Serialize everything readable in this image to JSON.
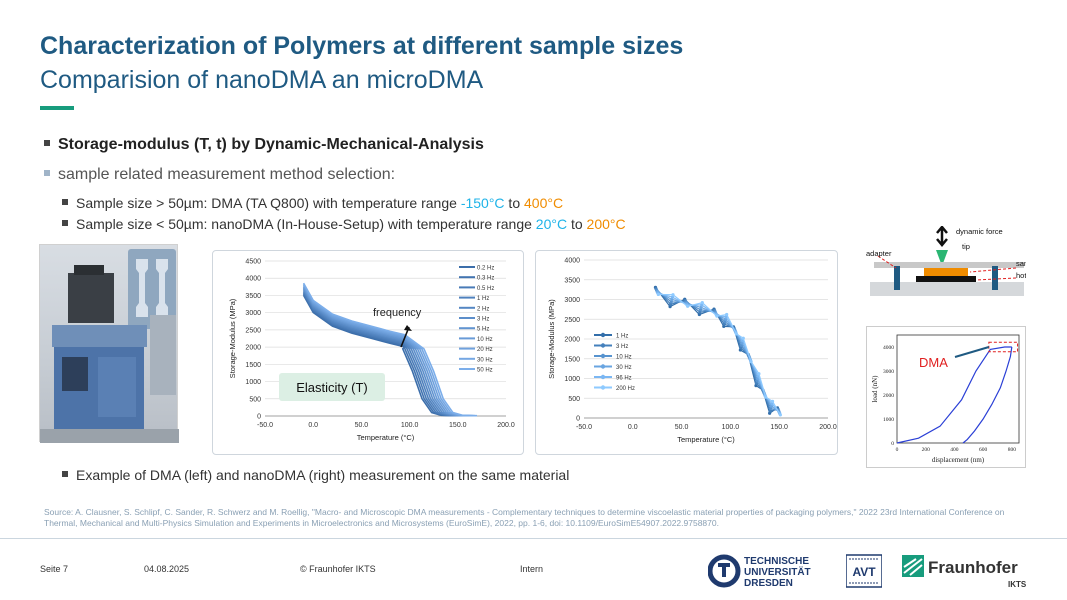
{
  "title": "Characterization of Polymers at different sample sizes",
  "subtitle": "Comparision of nanoDMA an microDMA",
  "bullets": {
    "b1": "Storage-modulus (T, t) by Dynamic-Mechanical-Analysis",
    "b2": "sample related measurement method selection:",
    "b3_pre": "Sample size > 50µm: DMA (TA Q800) with temperature range ",
    "b3_t1": "-150°C",
    "b3_mid": " to ",
    "b3_t2": "400°C",
    "b4_pre": "Sample size < 50µm: nanoDMA (In-House-Setup) with temperature range ",
    "b4_t1": "20°C",
    "b4_mid": " to ",
    "b4_t2": "200°C",
    "b5": "Example of DMA (left) and nanoDMA (right) measurement on the same material"
  },
  "chart_data": [
    {
      "type": "line",
      "title": "",
      "xlabel": "Temperature (°C)",
      "ylabel": "Storage-Modulus (MPa)",
      "xlim": [
        -50,
        200
      ],
      "ylim": [
        0,
        4500
      ],
      "x_ticks": [
        "-50.0",
        "0.0",
        "50.0",
        "100.0",
        "150.0",
        "200.0"
      ],
      "y_ticks": [
        "0",
        "500",
        "1000",
        "1500",
        "2000",
        "2500",
        "3000",
        "3500",
        "4000",
        "4500"
      ],
      "legend": [
        "0.2 Hz",
        "0.3 Hz",
        "0.5 Hz",
        "1 Hz",
        "2 Hz",
        "3 Hz",
        "5 Hz",
        "10 Hz",
        "20 Hz",
        "30 Hz",
        "50 Hz"
      ],
      "annotation_frequency": "frequency",
      "annotation_elasticity": "Elasticity (T)",
      "x": [
        -10,
        0,
        20,
        40,
        60,
        80,
        95,
        105,
        115,
        125,
        135,
        145,
        160
      ],
      "values": [
        3700,
        3200,
        2800,
        2600,
        2450,
        2300,
        2200,
        1950,
        1300,
        500,
        100,
        20,
        10
      ]
    },
    {
      "type": "scatter",
      "title": "",
      "xlabel": "Temperature (°C)",
      "ylabel": "Storage-Modulus (MPa)",
      "xlim": [
        -50,
        200
      ],
      "ylim": [
        0,
        4000
      ],
      "x_ticks": [
        "-50.0",
        "0.0",
        "50.0",
        "100.0",
        "150.0",
        "200.0"
      ],
      "y_ticks": [
        "0",
        "500",
        "1000",
        "1500",
        "2000",
        "2500",
        "3000",
        "3500",
        "4000"
      ],
      "legend": [
        "1 Hz",
        "3 Hz",
        "10 Hz",
        "30 Hz",
        "96 Hz",
        "200 Hz"
      ],
      "x": [
        25,
        40,
        55,
        70,
        85,
        95,
        105,
        112,
        120,
        128,
        135,
        142,
        150
      ],
      "values": [
        3200,
        3000,
        2900,
        2800,
        2650,
        2500,
        2200,
        1900,
        1500,
        1000,
        600,
        300,
        150
      ]
    },
    {
      "type": "line",
      "title": "",
      "xlabel": "displacement (nm)",
      "ylabel": "load (nN)",
      "annotation": "DMA",
      "xlim": [
        0,
        850
      ],
      "ylim": [
        0,
        4500
      ],
      "x_ticks": [
        "0",
        "200",
        "400",
        "600",
        "800"
      ],
      "y_ticks": [
        "0",
        "1000",
        "2000",
        "3000",
        "4000"
      ],
      "x": [
        0,
        150,
        300,
        450,
        550,
        650,
        750,
        800
      ],
      "values": [
        0,
        200,
        700,
        1800,
        3000,
        3900,
        4000,
        4000
      ]
    }
  ],
  "diagram": {
    "dynamic_force": "dynamic force",
    "tip": "tip",
    "adapter": "adapter",
    "sample": "sample",
    "hot_plate": "hot plate"
  },
  "source": "Source: A. Clausner, S. Schlipf, C. Sander, R. Schwerz and M. Roellig, \"Macro- and Microscopic DMA measurements - Complementary techniques to determine viscoelastic material properties of packaging polymers,\" 2022 23rd International Conference on Thermal, Mechanical and Multi-Physics Simulation and Experiments in Microelectronics and Microsystems (EuroSimE), 2022, pp. 1-6, doi: 10.1109/EuroSimE54907.2022.9758870.",
  "footer": {
    "page": "Seite 7",
    "date": "04.08.2025",
    "copyright": "© Fraunhofer IKTS",
    "classification": "Intern"
  },
  "logos": {
    "tud_1": "TECHNISCHE",
    "tud_2": "UNIVERSITÄT",
    "tud_3": "DRESDEN",
    "avt": "AVT",
    "fh": "Fraunhofer",
    "fh_sub": "IKTS"
  },
  "colors": {
    "title": "#1f5a82",
    "accent": "#179c7d",
    "cold": "#1fb3e8",
    "hot": "#f08c00",
    "series": "#4a7fc1"
  }
}
